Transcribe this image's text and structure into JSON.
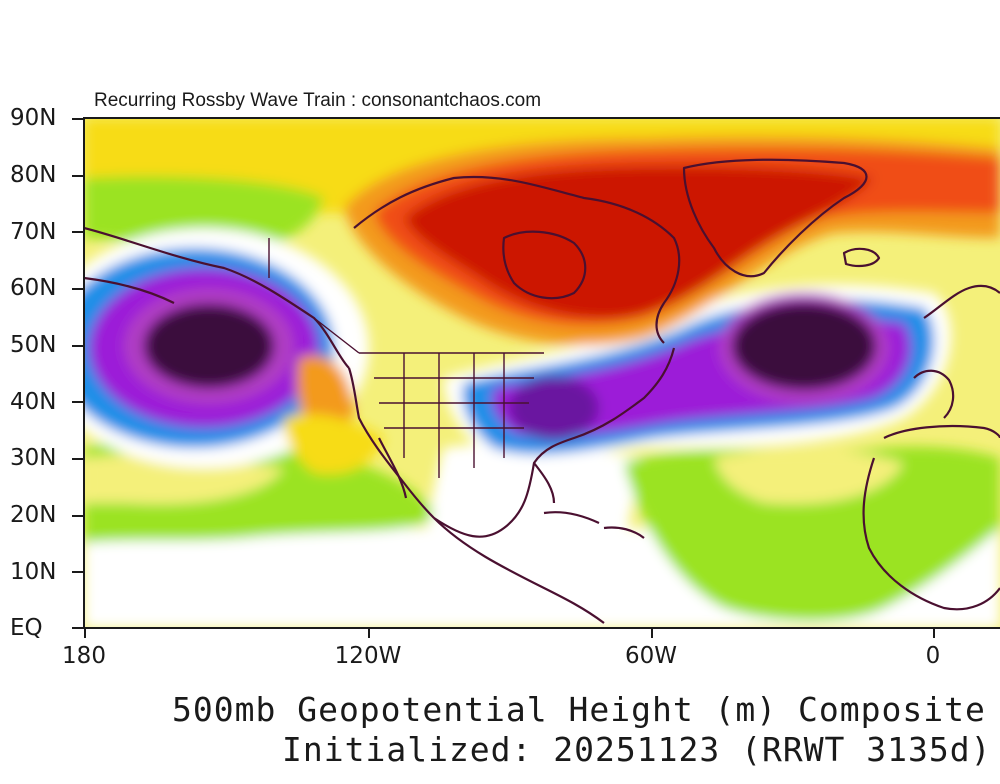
{
  "title": "Recurring Rossby Wave Train : consonantchaos.com",
  "caption_line1": "500mb Geopotential Height (m) Composite",
  "caption_line2": "Initialized: 20251123 (RRWT 3135d)",
  "latitude_labels": [
    "90N",
    "80N",
    "70N",
    "60N",
    "50N",
    "40N",
    "30N",
    "20N",
    "10N",
    "EQ"
  ],
  "longitude_labels": [
    "180",
    "120W",
    "60W",
    "0"
  ],
  "colors": {
    "deep_low": "#3a0f3c",
    "purple": "#9c1fd8",
    "blue": "#1f8fe8",
    "light_yellow": "#f4f07a",
    "yellow": "#f7dc16",
    "green": "#9be320",
    "orange": "#f39a1c",
    "red_orange": "#f04e14",
    "deep_red": "#cc1606",
    "coastline": "#4a1030"
  }
}
